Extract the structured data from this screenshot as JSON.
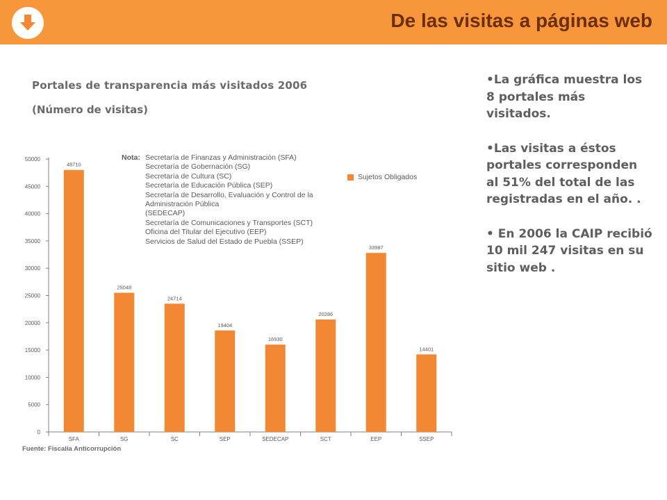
{
  "colors": {
    "header": "#f7963a",
    "bar": "#f28833",
    "title_text": "#6b2e05",
    "icon": "#f28833"
  },
  "header": {
    "title": "De las visitas a páginas web",
    "icon": "download-arrow-icon"
  },
  "chart_heading": {
    "title": "Portales de transparencia más visitados 2006",
    "subtitle": "(Número de visitas)"
  },
  "chart_data": {
    "type": "bar",
    "categories": [
      "SFA",
      "SG",
      "SC",
      "SEP",
      "SEDECAP",
      "SCT",
      "EEP",
      "SSEP"
    ],
    "values": [
      48710,
      25048,
      24714,
      19404,
      16930,
      20286,
      33987,
      14401
    ],
    "bar_heights_read": [
      48000,
      25500,
      23500,
      18600,
      16000,
      20600,
      32800,
      14200
    ],
    "series": [
      {
        "name": "Sujetos Obligados",
        "values": [
          48710,
          25048,
          24714,
          19404,
          16930,
          20286,
          33987,
          14401
        ]
      }
    ],
    "data_labels": [
      "48710",
      "25048",
      "24714",
      "19404",
      "16930",
      "20286",
      "33987",
      "14401"
    ],
    "yticks": [
      0,
      5000,
      10000,
      15000,
      20000,
      25000,
      30000,
      35000,
      40000,
      45000,
      50000
    ],
    "ytick_labels": [
      "0",
      "5000",
      "10000",
      "15000",
      "20000",
      "25000",
      "30000",
      "35000",
      "40000",
      "45000",
      "50000"
    ],
    "ylim": [
      0,
      50000
    ],
    "legend": "top-right",
    "grid": false
  },
  "note": {
    "label": "Nota:",
    "lines": [
      "Secretaría de Finanzas y Administración (SFA)",
      "Secretaría de Gobernación (SG)",
      "Secretaría de Cultura (SC)",
      "Secretaría de Educación Pública (SEP)",
      "Secretaría de Desarrollo, Evaluación y Control de la",
      "Administración Pública",
      "(SEDECAP)",
      "Secretaría de Comunicaciones y Transportes (SCT)",
      "Oficina del Titular del Ejecutivo (EEP)",
      "Servicios de Salud del Estado de Puebla (SSEP)"
    ]
  },
  "source": "Fuente: Fiscalía Anticorrupción",
  "bullets": [
    "•La gráfica  muestra los 8 portales más visitados.",
    "•Las visitas a éstos portales corresponden al  51% del total de las registradas en el año. .",
    "• En 2006 la CAIP recibió 10 mil 247 visitas en su sitio web ."
  ]
}
